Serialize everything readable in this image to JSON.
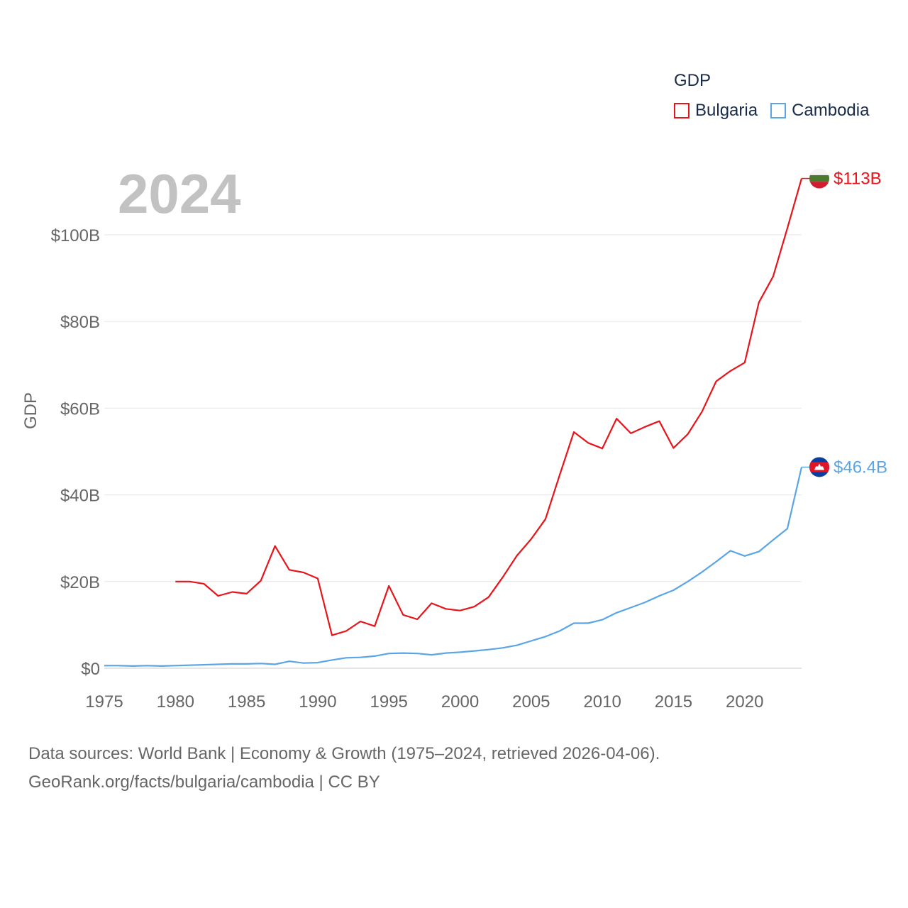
{
  "legend": {
    "title": "GDP",
    "items": [
      {
        "label": "Bulgaria",
        "color": "#e8141a"
      },
      {
        "label": "Cambodia",
        "color": "#5aa5e6"
      }
    ]
  },
  "year_label": "2024",
  "source": {
    "line1": "Data sources: World Bank | Economy & Growth (1975–2024, retrieved 2026-04-06).",
    "line2": "GeoRank.org/facts/bulgaria/cambodia | CC BY"
  },
  "chart_data": {
    "type": "line",
    "ylabel": "GDP",
    "xlabel": "",
    "xlim": [
      1975,
      2024
    ],
    "ylim": [
      0,
      113
    ],
    "x_ticks": [
      1975,
      1980,
      1985,
      1990,
      1995,
      2000,
      2005,
      2010,
      2015,
      2020
    ],
    "y_ticks": [
      {
        "value": 0,
        "label": "$0"
      },
      {
        "value": 20,
        "label": "$20B"
      },
      {
        "value": 40,
        "label": "$40B"
      },
      {
        "value": 60,
        "label": "$60B"
      },
      {
        "value": 80,
        "label": "$80B"
      },
      {
        "value": 100,
        "label": "$100B"
      }
    ],
    "series": [
      {
        "name": "Bulgaria",
        "color": "#e8141a",
        "end_label": "$113B",
        "flag": "bulgaria-flag",
        "x": [
          1980,
          1981,
          1982,
          1983,
          1984,
          1985,
          1986,
          1987,
          1988,
          1989,
          1990,
          1991,
          1992,
          1993,
          1994,
          1995,
          1996,
          1997,
          1998,
          1999,
          2000,
          2001,
          2002,
          2003,
          2004,
          2005,
          2006,
          2007,
          2008,
          2009,
          2010,
          2011,
          2012,
          2013,
          2014,
          2015,
          2016,
          2017,
          2018,
          2019,
          2020,
          2021,
          2022,
          2023,
          2024
        ],
        "values": [
          20.0,
          20.0,
          19.5,
          16.7,
          17.6,
          17.2,
          20.2,
          28.2,
          22.7,
          22.1,
          20.7,
          7.6,
          8.6,
          10.8,
          9.7,
          19.0,
          12.3,
          11.3,
          15.0,
          13.7,
          13.3,
          14.2,
          16.4,
          21.0,
          26.0,
          29.8,
          34.4,
          44.6,
          54.5,
          52.0,
          50.7,
          57.6,
          54.2,
          55.7,
          57.0,
          50.8,
          54.0,
          59.2,
          66.2,
          68.6,
          70.5,
          84.4,
          90.4,
          101.5,
          113.0
        ]
      },
      {
        "name": "Cambodia",
        "color": "#5aa5e6",
        "end_label": "$46.4B",
        "flag": "cambodia-flag",
        "x": [
          1975,
          1976,
          1977,
          1978,
          1979,
          1980,
          1981,
          1982,
          1983,
          1984,
          1985,
          1986,
          1987,
          1988,
          1989,
          1990,
          1991,
          1992,
          1993,
          1994,
          1995,
          1996,
          1997,
          1998,
          1999,
          2000,
          2001,
          2002,
          2003,
          2004,
          2005,
          2006,
          2007,
          2008,
          2009,
          2010,
          2011,
          2012,
          2013,
          2014,
          2015,
          2016,
          2017,
          2018,
          2019,
          2020,
          2021,
          2022,
          2023,
          2024
        ],
        "values": [
          0.6,
          0.6,
          0.5,
          0.6,
          0.5,
          0.6,
          0.7,
          0.8,
          0.9,
          1.0,
          1.0,
          1.1,
          0.9,
          1.6,
          1.2,
          1.3,
          1.9,
          2.4,
          2.5,
          2.8,
          3.4,
          3.5,
          3.4,
          3.1,
          3.5,
          3.7,
          4.0,
          4.3,
          4.7,
          5.3,
          6.3,
          7.3,
          8.6,
          10.4,
          10.4,
          11.2,
          12.8,
          14.0,
          15.2,
          16.7,
          18.0,
          20.0,
          22.2,
          24.6,
          27.1,
          25.9,
          26.9,
          29.6,
          32.2,
          46.4
        ]
      }
    ]
  }
}
